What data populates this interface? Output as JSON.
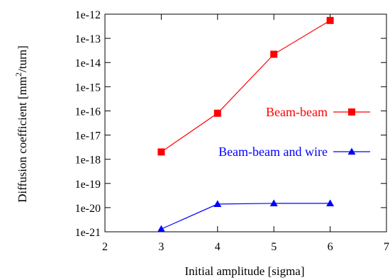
{
  "chart_data": {
    "type": "line",
    "xlabel": "Initial amplitude [sigma]",
    "ylabel_main": "Diffusion coefficient [mm",
    "ylabel_sup": "2",
    "ylabel_tail": "/turn]",
    "xlim": [
      2,
      7
    ],
    "ylim_exp": [
      -21,
      -12
    ],
    "yscale": "log",
    "x_ticks": [
      "2",
      "3",
      "4",
      "5",
      "6",
      "7"
    ],
    "y_ticks": [
      "1e-21",
      "1e-20",
      "1e-19",
      "1e-18",
      "1e-17",
      "1e-16",
      "1e-15",
      "1e-14",
      "1e-13",
      "1e-12"
    ],
    "legend_position": "right",
    "series": [
      {
        "name": "Beam-beam",
        "color": "#ff0000",
        "marker": "square",
        "x": [
          3,
          4,
          5,
          6
        ],
        "y": [
          2e-18,
          8e-17,
          2.2e-14,
          5.5e-13
        ]
      },
      {
        "name": "Beam-beam and wire",
        "color": "#0000ff",
        "marker": "triangle",
        "x": [
          3,
          4,
          5,
          6
        ],
        "y": [
          1.3e-21,
          1.4e-20,
          1.5e-20,
          1.5e-20
        ]
      }
    ]
  }
}
